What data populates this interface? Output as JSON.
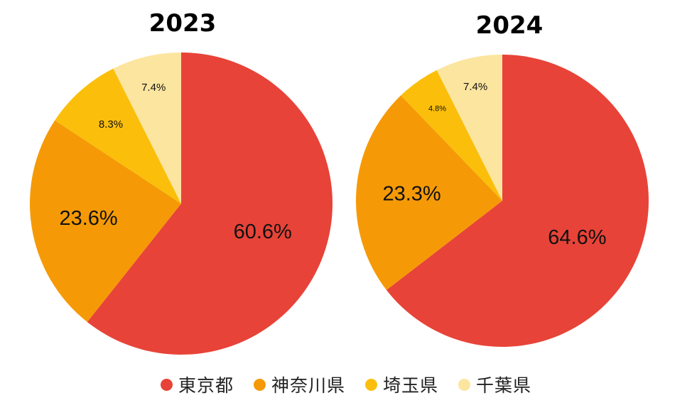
{
  "chart_data": [
    {
      "type": "pie",
      "title": "2023",
      "categories": [
        "東京都",
        "神奈川県",
        "埼玉県",
        "千葉県"
      ],
      "values": [
        60.6,
        23.6,
        8.3,
        7.4
      ],
      "labels": [
        "60.6%",
        "23.6%",
        "8.3%",
        "7.4%"
      ]
    },
    {
      "type": "pie",
      "title": "2024",
      "categories": [
        "東京都",
        "神奈川県",
        "埼玉県",
        "千葉県"
      ],
      "values": [
        64.6,
        23.3,
        4.8,
        7.4
      ],
      "labels": [
        "64.6%",
        "23.3%",
        "4.8%",
        "7.4%"
      ]
    }
  ],
  "legend": [
    {
      "label": "東京都",
      "color": "#e84338"
    },
    {
      "label": "神奈川県",
      "color": "#f59a06"
    },
    {
      "label": "埼玉県",
      "color": "#fbbf0b"
    },
    {
      "label": "千葉県",
      "color": "#fce59f"
    }
  ]
}
